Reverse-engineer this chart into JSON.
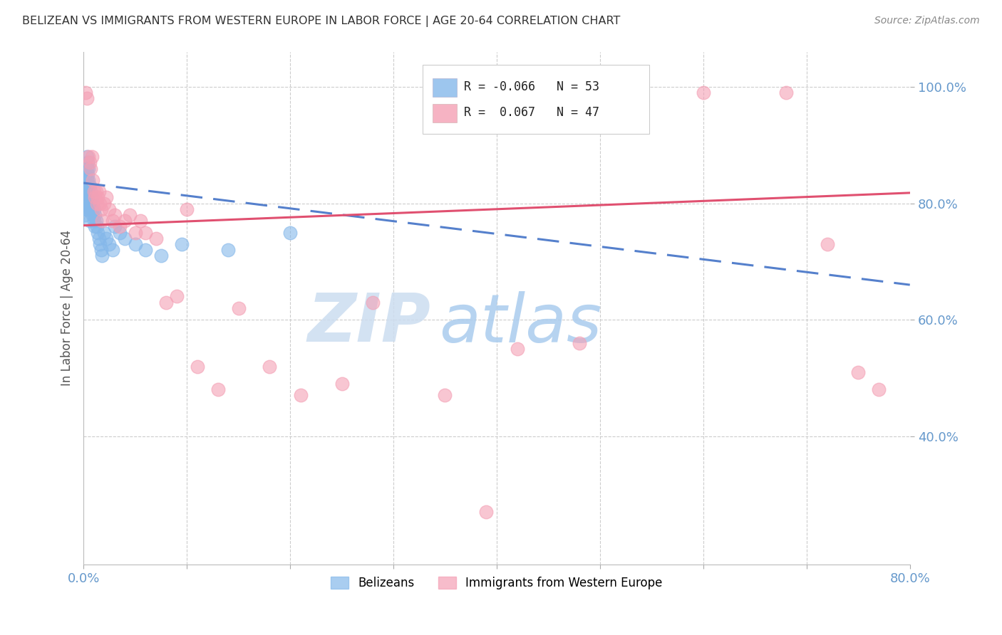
{
  "title": "BELIZEAN VS IMMIGRANTS FROM WESTERN EUROPE IN LABOR FORCE | AGE 20-64 CORRELATION CHART",
  "source": "Source: ZipAtlas.com",
  "ylabel": "In Labor Force | Age 20-64",
  "xmin": 0.0,
  "xmax": 0.8,
  "ymin": 0.18,
  "ymax": 1.06,
  "blue_R": -0.066,
  "blue_N": 53,
  "pink_R": 0.067,
  "pink_N": 47,
  "blue_color": "#85B8EA",
  "pink_color": "#F4A0B5",
  "blue_trend_color": "#5580CC",
  "pink_trend_color": "#E05070",
  "blue_label": "Belizeans",
  "pink_label": "Immigrants from Western Europe",
  "blue_trend_x0": 0.0,
  "blue_trend_x1": 0.8,
  "blue_trend_y0": 0.835,
  "blue_trend_y1": 0.66,
  "pink_trend_x0": 0.0,
  "pink_trend_x1": 0.8,
  "pink_trend_y0": 0.762,
  "pink_trend_y1": 0.818,
  "ytick_positions": [
    0.4,
    0.6,
    0.8,
    1.0
  ],
  "ytick_labels": [
    "40.0%",
    "60.0%",
    "80.0%",
    "100.0%"
  ],
  "xtick_positions": [
    0.0,
    0.1,
    0.2,
    0.3,
    0.4,
    0.5,
    0.6,
    0.7,
    0.8
  ],
  "blue_scatter_x": [
    0.001,
    0.001,
    0.001,
    0.002,
    0.002,
    0.002,
    0.002,
    0.003,
    0.003,
    0.003,
    0.003,
    0.003,
    0.004,
    0.004,
    0.004,
    0.005,
    0.005,
    0.005,
    0.005,
    0.006,
    0.006,
    0.006,
    0.006,
    0.007,
    0.007,
    0.008,
    0.008,
    0.009,
    0.009,
    0.01,
    0.01,
    0.011,
    0.011,
    0.012,
    0.013,
    0.014,
    0.015,
    0.016,
    0.017,
    0.018,
    0.02,
    0.022,
    0.025,
    0.028,
    0.03,
    0.035,
    0.04,
    0.05,
    0.06,
    0.075,
    0.095,
    0.14,
    0.2
  ],
  "blue_scatter_y": [
    0.82,
    0.8,
    0.78,
    0.85,
    0.83,
    0.81,
    0.79,
    0.88,
    0.86,
    0.84,
    0.82,
    0.79,
    0.87,
    0.85,
    0.83,
    0.86,
    0.84,
    0.82,
    0.8,
    0.83,
    0.81,
    0.79,
    0.77,
    0.82,
    0.8,
    0.81,
    0.79,
    0.8,
    0.78,
    0.79,
    0.77,
    0.78,
    0.76,
    0.77,
    0.76,
    0.75,
    0.74,
    0.73,
    0.72,
    0.71,
    0.75,
    0.74,
    0.73,
    0.72,
    0.76,
    0.75,
    0.74,
    0.73,
    0.72,
    0.71,
    0.73,
    0.72,
    0.75
  ],
  "pink_scatter_x": [
    0.002,
    0.003,
    0.005,
    0.006,
    0.007,
    0.008,
    0.009,
    0.01,
    0.011,
    0.012,
    0.013,
    0.014,
    0.015,
    0.016,
    0.017,
    0.018,
    0.02,
    0.022,
    0.025,
    0.028,
    0.03,
    0.035,
    0.04,
    0.045,
    0.05,
    0.055,
    0.06,
    0.07,
    0.08,
    0.09,
    0.1,
    0.11,
    0.13,
    0.15,
    0.18,
    0.21,
    0.25,
    0.28,
    0.35,
    0.42,
    0.48,
    0.6,
    0.68,
    0.72,
    0.75,
    0.77,
    0.39
  ],
  "pink_scatter_y": [
    0.99,
    0.98,
    0.88,
    0.87,
    0.86,
    0.88,
    0.84,
    0.82,
    0.81,
    0.82,
    0.8,
    0.81,
    0.82,
    0.8,
    0.79,
    0.77,
    0.8,
    0.81,
    0.79,
    0.77,
    0.78,
    0.76,
    0.77,
    0.78,
    0.75,
    0.77,
    0.75,
    0.74,
    0.63,
    0.64,
    0.79,
    0.52,
    0.48,
    0.62,
    0.52,
    0.47,
    0.49,
    0.63,
    0.47,
    0.55,
    0.56,
    0.99,
    0.99,
    0.73,
    0.51,
    0.48,
    0.27
  ],
  "watermark_zip": "ZIP",
  "watermark_atlas": "atlas",
  "grid_color": "#CCCCCC",
  "axis_color": "#6699CC",
  "title_color": "#333333",
  "background_color": "#FFFFFF"
}
